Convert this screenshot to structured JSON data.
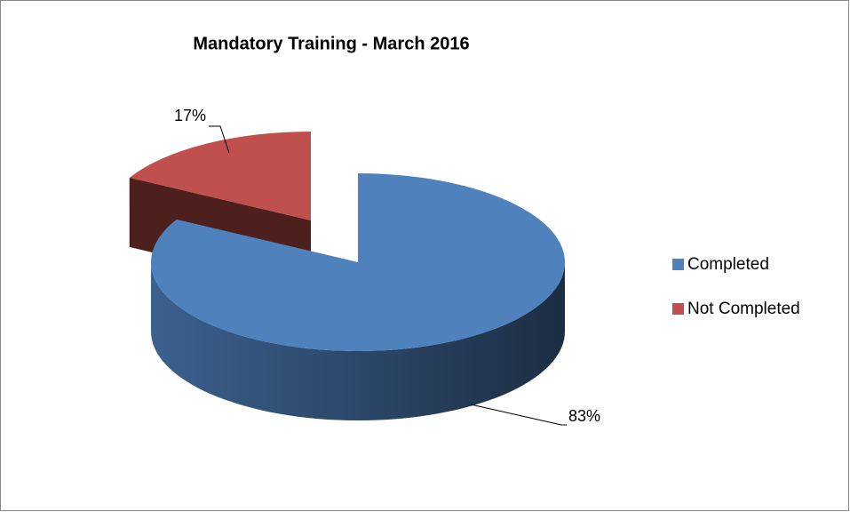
{
  "chart_data": {
    "type": "pie",
    "title": "Mandatory Training - March 2016",
    "categories": [
      "Completed",
      "Not Completed"
    ],
    "values": [
      83,
      17
    ],
    "value_labels": [
      "83%",
      "17%"
    ],
    "colors": [
      "#4f81bd",
      "#c0504d"
    ],
    "legend": "right"
  }
}
